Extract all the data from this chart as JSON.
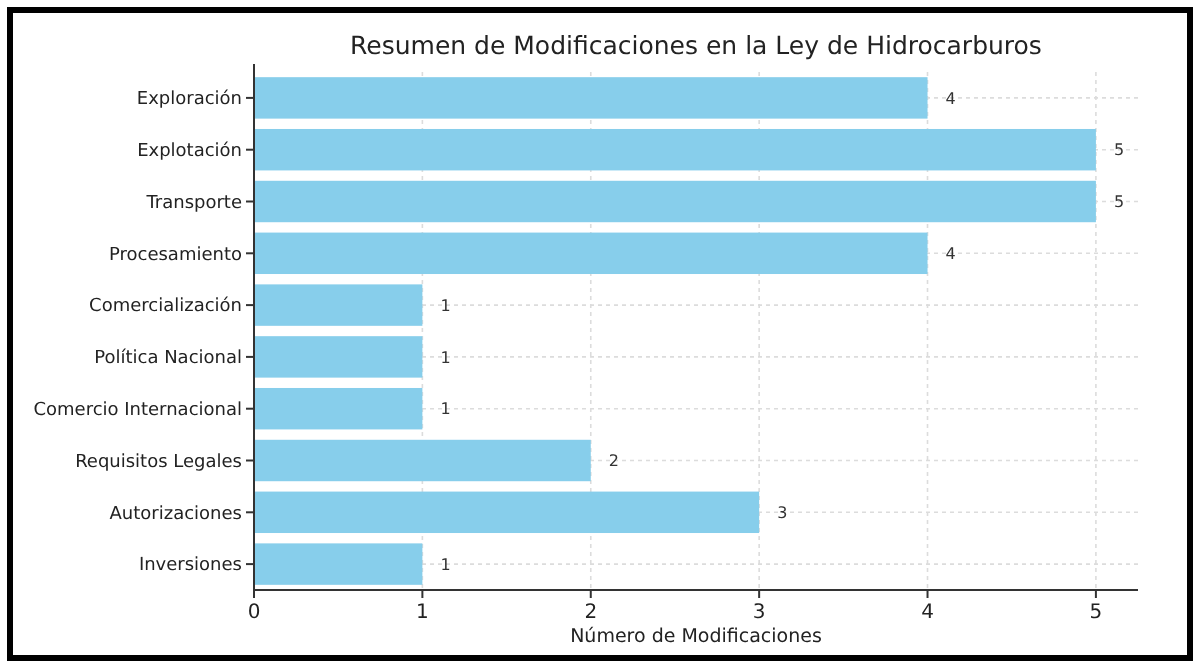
{
  "chart_data": {
    "type": "bar",
    "orientation": "horizontal",
    "title": "Resumen de Modificaciones en la Ley de Hidrocarburos",
    "xlabel": "Número de Modificaciones",
    "categories": [
      "Exploración",
      "Explotación",
      "Transporte",
      "Procesamiento",
      "Comercialización",
      "Política Nacional",
      "Comercio Internacional",
      "Requisitos Legales",
      "Autorizaciones",
      "Inversiones"
    ],
    "values": [
      4,
      5,
      5,
      4,
      1,
      1,
      1,
      2,
      3,
      1
    ],
    "color": "#87ceeb",
    "xlim": [
      0,
      5.25
    ],
    "xticks": [
      0,
      1,
      2,
      3,
      4,
      5
    ],
    "grid": true,
    "data_labels": true
  }
}
